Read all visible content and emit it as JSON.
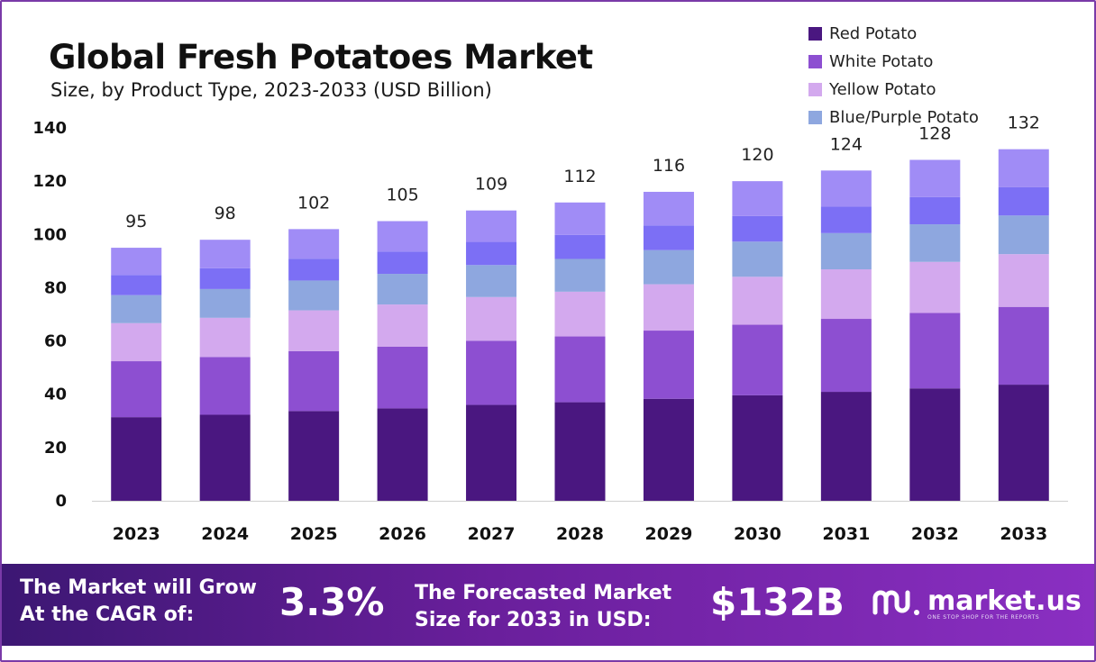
{
  "chart_data": {
    "type": "bar",
    "stacked": true,
    "title": "Global Fresh Potatoes Market",
    "subtitle": "Size, by Product Type, 2023-2033 (USD Billion)",
    "categories": [
      "2023",
      "2024",
      "2025",
      "2026",
      "2027",
      "2028",
      "2029",
      "2030",
      "2031",
      "2032",
      "2033"
    ],
    "totals": [
      95,
      98,
      102,
      105,
      109,
      112,
      116,
      120,
      124,
      128,
      132
    ],
    "total_labels": [
      "95",
      "98",
      "102",
      "105",
      "109",
      "112",
      "116",
      "120",
      "124",
      "128",
      "132"
    ],
    "series": [
      {
        "name": "Red Potato",
        "color": "#4a1780",
        "values": [
          31.4,
          32.3,
          33.7,
          34.7,
          36.0,
          37.0,
          38.3,
          39.6,
          40.9,
          42.2,
          43.6
        ]
      },
      {
        "name": "White Potato",
        "color": "#8d4fd1",
        "values": [
          21.0,
          21.7,
          22.5,
          23.2,
          24.1,
          24.7,
          25.6,
          26.5,
          27.4,
          28.3,
          29.2
        ]
      },
      {
        "name": "Yellow Potato",
        "color": "#d3a9ee",
        "values": [
          14.3,
          14.7,
          15.3,
          15.8,
          16.4,
          16.8,
          17.4,
          18.0,
          18.6,
          19.2,
          19.8
        ]
      },
      {
        "name": "Blue/Purple Potato",
        "color": "#8ea7df",
        "values": [
          10.5,
          10.8,
          11.2,
          11.5,
          12.0,
          12.3,
          12.8,
          13.2,
          13.6,
          14.1,
          14.5
        ]
      },
      {
        "color": "#7c6ff5",
        "values": [
          7.6,
          7.8,
          8.2,
          8.4,
          8.7,
          9.0,
          9.3,
          9.6,
          9.9,
          10.2,
          10.6
        ]
      },
      {
        "color": "#a08cf6",
        "values": [
          10.2,
          10.7,
          11.1,
          11.4,
          11.8,
          12.2,
          12.6,
          13.1,
          13.6,
          14.0,
          14.3
        ]
      }
    ],
    "xlabel": "",
    "ylabel": "",
    "ylim": [
      0,
      140
    ],
    "yticks": [
      0,
      20,
      40,
      60,
      80,
      100,
      120,
      140
    ],
    "grid": false,
    "legend_position": "top-right"
  },
  "footer": {
    "cagr_label_line1": "The Market will Grow",
    "cagr_label_line2": "At the CAGR of:",
    "cagr_value": "3.3%",
    "forecast_label_line1": "The Forecasted Market",
    "forecast_label_line2": "Size for 2033 in USD:",
    "forecast_value": "$132B",
    "brand_name": "market.us",
    "brand_tagline": "ONE STOP SHOP FOR THE REPORTS",
    "brand_logo_icon": "market-us-logo-icon"
  }
}
